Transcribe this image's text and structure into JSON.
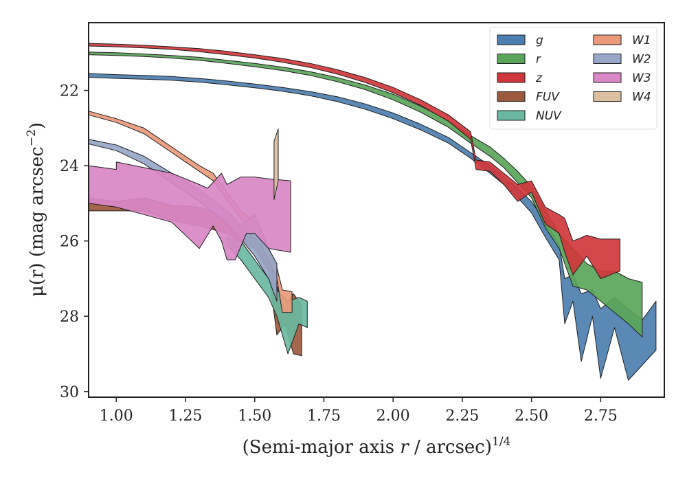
{
  "chart_data": {
    "type": "area",
    "title": "",
    "xlabel_main": "(Semi-major axis ",
    "xlabel_var": "r",
    "xlabel_rest": " / arcsec)",
    "xlabel_sup": "1/4",
    "ylabel_main": "μ(r) (mag arcsec",
    "ylabel_sup": "−2",
    "ylabel_close": ")",
    "xlim": [
      0.9,
      2.98
    ],
    "ylim": [
      30.15,
      20.2
    ],
    "y_inverted": true,
    "xticks": [
      1.0,
      1.25,
      1.5,
      1.75,
      2.0,
      2.25,
      2.5,
      2.75
    ],
    "xtick_labels": [
      "1.00",
      "1.25",
      "1.50",
      "1.75",
      "2.00",
      "2.25",
      "2.50",
      "2.75"
    ],
    "yticks": [
      22,
      24,
      26,
      28,
      30
    ],
    "ytick_labels": [
      "22",
      "24",
      "26",
      "28",
      "30"
    ],
    "legend": {
      "placement": "top-right",
      "columns": 2
    },
    "series": [
      {
        "name": "g",
        "color": "#4c7fb0",
        "upper": [
          [
            0.9,
            21.55
          ],
          [
            1.0,
            21.58
          ],
          [
            1.1,
            21.6
          ],
          [
            1.2,
            21.63
          ],
          [
            1.3,
            21.68
          ],
          [
            1.4,
            21.75
          ],
          [
            1.5,
            21.83
          ],
          [
            1.6,
            21.92
          ],
          [
            1.7,
            22.03
          ],
          [
            1.8,
            22.17
          ],
          [
            1.9,
            22.36
          ],
          [
            2.0,
            22.6
          ],
          [
            2.1,
            22.9
          ],
          [
            2.2,
            23.25
          ],
          [
            2.28,
            23.65
          ],
          [
            2.35,
            24.0
          ],
          [
            2.4,
            24.3
          ],
          [
            2.45,
            24.6
          ],
          [
            2.5,
            24.95
          ],
          [
            2.55,
            25.5
          ],
          [
            2.6,
            26.1
          ],
          [
            2.62,
            27.0
          ],
          [
            2.65,
            26.9
          ],
          [
            2.68,
            27.4
          ],
          [
            2.72,
            27.3
          ],
          [
            2.75,
            27.8
          ],
          [
            2.8,
            27.5
          ],
          [
            2.85,
            27.8
          ],
          [
            2.9,
            28.1
          ],
          [
            2.95,
            27.6
          ]
        ],
        "lower": [
          [
            0.9,
            21.65
          ],
          [
            1.0,
            21.68
          ],
          [
            1.1,
            21.7
          ],
          [
            1.2,
            21.73
          ],
          [
            1.3,
            21.78
          ],
          [
            1.4,
            21.85
          ],
          [
            1.5,
            21.93
          ],
          [
            1.6,
            22.02
          ],
          [
            1.7,
            22.14
          ],
          [
            1.8,
            22.3
          ],
          [
            1.9,
            22.5
          ],
          [
            2.0,
            22.75
          ],
          [
            2.1,
            23.05
          ],
          [
            2.2,
            23.4
          ],
          [
            2.28,
            23.8
          ],
          [
            2.35,
            24.2
          ],
          [
            2.4,
            24.5
          ],
          [
            2.45,
            24.85
          ],
          [
            2.5,
            25.25
          ],
          [
            2.55,
            25.9
          ],
          [
            2.6,
            26.5
          ],
          [
            2.62,
            28.2
          ],
          [
            2.65,
            27.6
          ],
          [
            2.68,
            29.2
          ],
          [
            2.72,
            28.0
          ],
          [
            2.75,
            29.65
          ],
          [
            2.8,
            28.3
          ],
          [
            2.85,
            29.7
          ],
          [
            2.9,
            29.3
          ],
          [
            2.95,
            28.9
          ]
        ]
      },
      {
        "name": "r",
        "color": "#5aa55a",
        "upper": [
          [
            0.9,
            20.98
          ],
          [
            1.0,
            21.0
          ],
          [
            1.1,
            21.03
          ],
          [
            1.2,
            21.07
          ],
          [
            1.3,
            21.12
          ],
          [
            1.4,
            21.2
          ],
          [
            1.5,
            21.28
          ],
          [
            1.6,
            21.38
          ],
          [
            1.7,
            21.5
          ],
          [
            1.8,
            21.66
          ],
          [
            1.9,
            21.86
          ],
          [
            2.0,
            22.1
          ],
          [
            2.1,
            22.42
          ],
          [
            2.2,
            22.8
          ],
          [
            2.28,
            23.2
          ],
          [
            2.35,
            23.5
          ],
          [
            2.4,
            23.8
          ],
          [
            2.45,
            24.15
          ],
          [
            2.5,
            24.55
          ],
          [
            2.55,
            25.2
          ],
          [
            2.6,
            25.8
          ],
          [
            2.65,
            26.2
          ],
          [
            2.7,
            26.6
          ],
          [
            2.75,
            26.8
          ],
          [
            2.8,
            26.8
          ],
          [
            2.85,
            27.0
          ],
          [
            2.9,
            27.1
          ]
        ],
        "lower": [
          [
            0.9,
            21.05
          ],
          [
            1.0,
            21.07
          ],
          [
            1.1,
            21.1
          ],
          [
            1.2,
            21.14
          ],
          [
            1.3,
            21.2
          ],
          [
            1.4,
            21.28
          ],
          [
            1.5,
            21.37
          ],
          [
            1.6,
            21.47
          ],
          [
            1.7,
            21.6
          ],
          [
            1.8,
            21.77
          ],
          [
            1.9,
            21.98
          ],
          [
            2.0,
            22.25
          ],
          [
            2.1,
            22.58
          ],
          [
            2.2,
            22.98
          ],
          [
            2.28,
            23.4
          ],
          [
            2.35,
            23.75
          ],
          [
            2.4,
            24.05
          ],
          [
            2.45,
            24.45
          ],
          [
            2.5,
            24.85
          ],
          [
            2.55,
            25.65
          ],
          [
            2.6,
            26.2
          ],
          [
            2.65,
            27.2
          ],
          [
            2.7,
            27.3
          ],
          [
            2.75,
            27.6
          ],
          [
            2.8,
            27.9
          ],
          [
            2.85,
            28.2
          ],
          [
            2.9,
            28.55
          ]
        ]
      },
      {
        "name": "z",
        "color": "#d0373b",
        "upper": [
          [
            0.9,
            20.75
          ],
          [
            1.0,
            20.77
          ],
          [
            1.1,
            20.8
          ],
          [
            1.2,
            20.84
          ],
          [
            1.3,
            20.89
          ],
          [
            1.4,
            20.96
          ],
          [
            1.5,
            21.05
          ],
          [
            1.6,
            21.15
          ],
          [
            1.7,
            21.28
          ],
          [
            1.8,
            21.45
          ],
          [
            1.9,
            21.66
          ],
          [
            2.0,
            21.92
          ],
          [
            2.1,
            22.25
          ],
          [
            2.2,
            22.65
          ],
          [
            2.28,
            23.1
          ],
          [
            2.3,
            23.85
          ],
          [
            2.35,
            23.9
          ],
          [
            2.4,
            24.2
          ],
          [
            2.45,
            24.5
          ],
          [
            2.5,
            24.4
          ],
          [
            2.55,
            25.1
          ],
          [
            2.6,
            25.3
          ],
          [
            2.62,
            25.4
          ],
          [
            2.65,
            26.0
          ],
          [
            2.7,
            25.85
          ],
          [
            2.75,
            25.95
          ],
          [
            2.82,
            25.95
          ]
        ],
        "lower": [
          [
            0.9,
            20.82
          ],
          [
            1.0,
            20.84
          ],
          [
            1.1,
            20.87
          ],
          [
            1.2,
            20.91
          ],
          [
            1.3,
            20.97
          ],
          [
            1.4,
            21.05
          ],
          [
            1.5,
            21.14
          ],
          [
            1.6,
            21.25
          ],
          [
            1.7,
            21.39
          ],
          [
            1.8,
            21.57
          ],
          [
            1.9,
            21.79
          ],
          [
            2.0,
            22.06
          ],
          [
            2.1,
            22.4
          ],
          [
            2.2,
            22.82
          ],
          [
            2.28,
            23.3
          ],
          [
            2.3,
            24.1
          ],
          [
            2.35,
            24.15
          ],
          [
            2.4,
            24.5
          ],
          [
            2.45,
            24.95
          ],
          [
            2.5,
            24.7
          ],
          [
            2.55,
            25.55
          ],
          [
            2.6,
            25.8
          ],
          [
            2.62,
            26.3
          ],
          [
            2.65,
            26.9
          ],
          [
            2.7,
            26.4
          ],
          [
            2.75,
            27.0
          ],
          [
            2.82,
            26.8
          ]
        ]
      },
      {
        "name": "FUV",
        "color": "#9c5a3c",
        "upper": [
          [
            0.9,
            24.85
          ],
          [
            1.0,
            24.95
          ],
          [
            1.1,
            24.85
          ],
          [
            1.2,
            25.05
          ],
          [
            1.3,
            25.1
          ],
          [
            1.4,
            25.35
          ],
          [
            1.45,
            25.6
          ],
          [
            1.5,
            25.9
          ],
          [
            1.55,
            26.4
          ],
          [
            1.58,
            27.2
          ],
          [
            1.61,
            27.7
          ],
          [
            1.64,
            27.4
          ],
          [
            1.67,
            27.7
          ]
        ],
        "lower": [
          [
            0.9,
            25.2
          ],
          [
            1.0,
            25.2
          ],
          [
            1.1,
            25.2
          ],
          [
            1.2,
            25.45
          ],
          [
            1.3,
            25.6
          ],
          [
            1.4,
            25.8
          ],
          [
            1.45,
            26.0
          ],
          [
            1.5,
            26.2
          ],
          [
            1.55,
            26.8
          ],
          [
            1.58,
            28.5
          ],
          [
            1.61,
            28.2
          ],
          [
            1.64,
            29.0
          ],
          [
            1.67,
            29.05
          ]
        ]
      },
      {
        "name": "NUV",
        "color": "#6ab8a0",
        "upper": [
          [
            1.4,
            25.9
          ],
          [
            1.45,
            26.0
          ],
          [
            1.5,
            26.5
          ],
          [
            1.55,
            27.0
          ],
          [
            1.58,
            27.3
          ],
          [
            1.62,
            27.6
          ],
          [
            1.66,
            27.5
          ],
          [
            1.69,
            27.6
          ]
        ],
        "lower": [
          [
            1.4,
            26.1
          ],
          [
            1.45,
            26.5
          ],
          [
            1.5,
            27.0
          ],
          [
            1.55,
            27.5
          ],
          [
            1.58,
            28.0
          ],
          [
            1.62,
            29.0
          ],
          [
            1.66,
            28.2
          ],
          [
            1.69,
            28.3
          ]
        ]
      },
      {
        "name": "W1",
        "color": "#ea9a7a",
        "upper": [
          [
            0.9,
            22.55
          ],
          [
            1.0,
            22.75
          ],
          [
            1.1,
            23.0
          ],
          [
            1.2,
            23.5
          ],
          [
            1.3,
            24.0
          ],
          [
            1.35,
            24.2
          ],
          [
            1.4,
            24.7
          ],
          [
            1.45,
            25.2
          ],
          [
            1.5,
            25.5
          ],
          [
            1.55,
            26.2
          ],
          [
            1.58,
            26.7
          ],
          [
            1.6,
            27.3
          ],
          [
            1.635,
            27.35
          ]
        ],
        "lower": [
          [
            0.9,
            22.65
          ],
          [
            1.0,
            22.85
          ],
          [
            1.1,
            23.15
          ],
          [
            1.2,
            23.65
          ],
          [
            1.3,
            24.15
          ],
          [
            1.35,
            24.4
          ],
          [
            1.4,
            24.9
          ],
          [
            1.45,
            25.4
          ],
          [
            1.5,
            25.7
          ],
          [
            1.55,
            26.5
          ],
          [
            1.58,
            27.0
          ],
          [
            1.6,
            27.9
          ],
          [
            1.635,
            27.9
          ]
        ]
      },
      {
        "name": "W2",
        "color": "#98a6c8",
        "upper": [
          [
            0.9,
            23.3
          ],
          [
            1.0,
            23.45
          ],
          [
            1.1,
            23.75
          ],
          [
            1.2,
            24.2
          ],
          [
            1.3,
            24.65
          ],
          [
            1.4,
            25.2
          ],
          [
            1.45,
            25.6
          ],
          [
            1.5,
            25.3
          ],
          [
            1.55,
            26.2
          ],
          [
            1.58,
            26.6
          ]
        ],
        "lower": [
          [
            0.9,
            23.42
          ],
          [
            1.0,
            23.6
          ],
          [
            1.1,
            23.95
          ],
          [
            1.2,
            24.45
          ],
          [
            1.3,
            24.95
          ],
          [
            1.4,
            25.55
          ],
          [
            1.45,
            25.95
          ],
          [
            1.5,
            26.4
          ],
          [
            1.55,
            27.0
          ],
          [
            1.58,
            27.6
          ]
        ]
      },
      {
        "name": "W3",
        "color": "#d987c6",
        "upper": [
          [
            0.9,
            24.0
          ],
          [
            1.0,
            24.1
          ],
          [
            1.0,
            23.9
          ],
          [
            1.1,
            24.05
          ],
          [
            1.2,
            24.2
          ],
          [
            1.3,
            24.5
          ],
          [
            1.33,
            24.6
          ],
          [
            1.38,
            24.2
          ],
          [
            1.4,
            24.5
          ],
          [
            1.45,
            24.3
          ],
          [
            1.5,
            24.3
          ],
          [
            1.55,
            24.35
          ],
          [
            1.63,
            24.4
          ]
        ],
        "lower": [
          [
            0.9,
            25.0
          ],
          [
            1.0,
            25.1
          ],
          [
            1.1,
            25.3
          ],
          [
            1.2,
            25.5
          ],
          [
            1.3,
            26.2
          ],
          [
            1.35,
            25.6
          ],
          [
            1.38,
            26.0
          ],
          [
            1.4,
            26.5
          ],
          [
            1.43,
            26.5
          ],
          [
            1.47,
            25.8
          ],
          [
            1.5,
            25.8
          ],
          [
            1.55,
            26.2
          ],
          [
            1.63,
            26.3
          ]
        ]
      },
      {
        "name": "W4",
        "color": "#dcc0a0",
        "upper": [
          [
            1.57,
            23.35
          ],
          [
            1.585,
            23.02
          ]
        ],
        "lower": [
          [
            1.57,
            24.9
          ],
          [
            1.585,
            24.4
          ]
        ]
      }
    ]
  }
}
